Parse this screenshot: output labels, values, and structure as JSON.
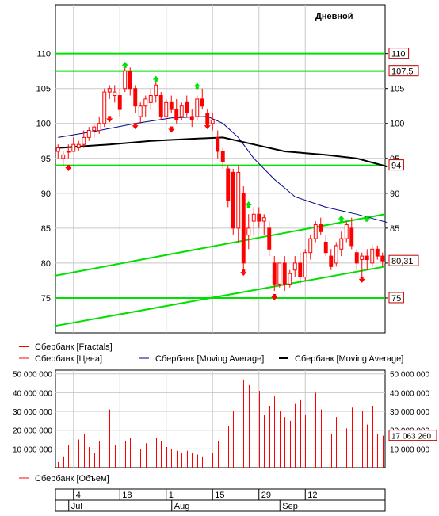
{
  "chart_data": [
    {
      "type": "candlestick",
      "title": "Дневной",
      "ylim": [
        70,
        117
      ],
      "y_ticks": [
        75,
        80,
        85,
        90,
        95,
        100,
        105,
        110
      ],
      "grid": true,
      "colors": {
        "price": "#ff0000",
        "ma_short": "#00008b",
        "ma_long": "#000000",
        "levels": "#00e000",
        "fractal_up": "#00e000",
        "fractal_down": "#ff0000"
      },
      "horizontal_levels": [
        110,
        107.5,
        94,
        75
      ],
      "level_labels": [
        "110",
        "107,5",
        "94",
        "75"
      ],
      "last_price": 80.31,
      "last_price_label": "80,31",
      "candles": [
        {
          "o": 96,
          "h": 97,
          "l": 95,
          "c": 96.5
        },
        {
          "o": 95,
          "h": 96,
          "l": 94,
          "c": 95.5
        },
        {
          "o": 96,
          "h": 97,
          "l": 95,
          "c": 96
        },
        {
          "o": 96,
          "h": 98,
          "l": 96,
          "c": 97
        },
        {
          "o": 96.5,
          "h": 97.5,
          "l": 96,
          "c": 97
        },
        {
          "o": 97,
          "h": 99,
          "l": 96.5,
          "c": 98
        },
        {
          "o": 98,
          "h": 99.5,
          "l": 97.5,
          "c": 99
        },
        {
          "o": 99,
          "h": 100,
          "l": 98,
          "c": 99.5
        },
        {
          "o": 99,
          "h": 101,
          "l": 98.5,
          "c": 100
        },
        {
          "o": 100,
          "h": 105,
          "l": 99.5,
          "c": 104.5
        },
        {
          "o": 104.5,
          "h": 105.5,
          "l": 103.5,
          "c": 105
        },
        {
          "o": 104,
          "h": 105.5,
          "l": 103,
          "c": 104.5
        },
        {
          "o": 104,
          "h": 105,
          "l": 101,
          "c": 102
        },
        {
          "o": 105,
          "h": 108,
          "l": 104.5,
          "c": 107.5
        },
        {
          "o": 107.5,
          "h": 108,
          "l": 104,
          "c": 105
        },
        {
          "o": 105,
          "h": 105.5,
          "l": 101.5,
          "c": 102.5
        },
        {
          "o": 101,
          "h": 103,
          "l": 100,
          "c": 102.5
        },
        {
          "o": 102.5,
          "h": 104,
          "l": 101,
          "c": 103.5
        },
        {
          "o": 103,
          "h": 105,
          "l": 102,
          "c": 104
        },
        {
          "o": 104,
          "h": 106,
          "l": 103,
          "c": 105.5
        },
        {
          "o": 104,
          "h": 104.5,
          "l": 100.5,
          "c": 101
        },
        {
          "o": 101,
          "h": 103.5,
          "l": 100,
          "c": 103
        },
        {
          "o": 103,
          "h": 104,
          "l": 101.5,
          "c": 102
        },
        {
          "o": 102,
          "h": 103.5,
          "l": 100,
          "c": 100.5
        },
        {
          "o": 101,
          "h": 103,
          "l": 100.5,
          "c": 102.5
        },
        {
          "o": 103,
          "h": 104,
          "l": 101,
          "c": 101.5
        },
        {
          "o": 101,
          "h": 102,
          "l": 99.5,
          "c": 100.5
        },
        {
          "o": 101,
          "h": 104,
          "l": 100.5,
          "c": 103.5
        },
        {
          "o": 103.5,
          "h": 105,
          "l": 102,
          "c": 102.5
        },
        {
          "o": 101.5,
          "h": 102,
          "l": 99.5,
          "c": 100
        },
        {
          "o": 100,
          "h": 101.5,
          "l": 99,
          "c": 100.5
        },
        {
          "o": 98,
          "h": 99,
          "l": 95,
          "c": 96
        },
        {
          "o": 96,
          "h": 96.5,
          "l": 93.5,
          "c": 94.5
        },
        {
          "o": 93.5,
          "h": 94,
          "l": 88,
          "c": 89
        },
        {
          "o": 93,
          "h": 93.5,
          "l": 84,
          "c": 85
        },
        {
          "o": 85,
          "h": 94,
          "l": 83,
          "c": 93
        },
        {
          "o": 90,
          "h": 91,
          "l": 79,
          "c": 80
        },
        {
          "o": 84,
          "h": 87,
          "l": 82,
          "c": 85
        },
        {
          "o": 86,
          "h": 88,
          "l": 84,
          "c": 87
        },
        {
          "o": 87,
          "h": 88,
          "l": 85,
          "c": 86
        },
        {
          "o": 86,
          "h": 87,
          "l": 84,
          "c": 86.5
        },
        {
          "o": 85,
          "h": 86,
          "l": 81,
          "c": 82
        },
        {
          "o": 80,
          "h": 81,
          "l": 76,
          "c": 77
        },
        {
          "o": 77,
          "h": 80,
          "l": 76.5,
          "c": 80
        },
        {
          "o": 80,
          "h": 81,
          "l": 76,
          "c": 77
        },
        {
          "o": 77,
          "h": 79,
          "l": 76.5,
          "c": 78.5
        },
        {
          "o": 79,
          "h": 81,
          "l": 78,
          "c": 80
        },
        {
          "o": 80,
          "h": 81.5,
          "l": 77,
          "c": 78
        },
        {
          "o": 78,
          "h": 82,
          "l": 77.5,
          "c": 81.5
        },
        {
          "o": 81.5,
          "h": 84,
          "l": 80.5,
          "c": 83.5
        },
        {
          "o": 83.5,
          "h": 86,
          "l": 83,
          "c": 85.5
        },
        {
          "o": 85.5,
          "h": 86.5,
          "l": 84,
          "c": 84.5
        },
        {
          "o": 83,
          "h": 84,
          "l": 81,
          "c": 81.5
        },
        {
          "o": 81,
          "h": 82,
          "l": 79,
          "c": 79.5
        },
        {
          "o": 80,
          "h": 83,
          "l": 79.5,
          "c": 82.5
        },
        {
          "o": 82,
          "h": 84.5,
          "l": 81,
          "c": 83.5
        },
        {
          "o": 83.5,
          "h": 86,
          "l": 83,
          "c": 85.5
        },
        {
          "o": 85,
          "h": 86.5,
          "l": 82,
          "c": 82.5
        },
        {
          "o": 81.5,
          "h": 82,
          "l": 79,
          "c": 80
        },
        {
          "o": 80.5,
          "h": 81.5,
          "l": 78,
          "c": 81
        },
        {
          "o": 81,
          "h": 82,
          "l": 79,
          "c": 80.5
        },
        {
          "o": 80,
          "h": 82.5,
          "l": 79.5,
          "c": 82
        },
        {
          "o": 82,
          "h": 82.5,
          "l": 80.5,
          "c": 81
        },
        {
          "o": 81,
          "h": 81.5,
          "l": 79.5,
          "c": 80.31
        }
      ],
      "fractals_up": [
        [
          13,
          108.5
        ],
        [
          19,
          106.5
        ],
        [
          27,
          105.5
        ],
        [
          37,
          88.5
        ],
        [
          55,
          86.5
        ],
        [
          60,
          86.5
        ]
      ],
      "fractals_down": [
        [
          2,
          93.5
        ],
        [
          10,
          100.5
        ],
        [
          15,
          99.5
        ],
        [
          22,
          99
        ],
        [
          29,
          99.5
        ],
        [
          36,
          78.5
        ],
        [
          42,
          75
        ],
        [
          59,
          77.5
        ]
      ],
      "ma_short": [
        [
          0,
          98
        ],
        [
          8,
          99
        ],
        [
          15,
          100
        ],
        [
          22,
          100.8
        ],
        [
          29,
          101
        ],
        [
          32,
          100
        ],
        [
          35,
          98
        ],
        [
          38,
          95
        ],
        [
          42,
          92
        ],
        [
          46,
          89.5
        ],
        [
          52,
          88
        ],
        [
          58,
          87
        ],
        [
          64,
          85.8
        ]
      ],
      "ma_long": [
        [
          0,
          96.5
        ],
        [
          10,
          97
        ],
        [
          18,
          97.5
        ],
        [
          26,
          97.8
        ],
        [
          32,
          98
        ],
        [
          38,
          97
        ],
        [
          44,
          96
        ],
        [
          52,
          95.5
        ],
        [
          58,
          95
        ],
        [
          64,
          93.8
        ]
      ],
      "channel_lines": [
        [
          [
            0,
            78.2
          ],
          [
            64,
            87
          ]
        ],
        [
          [
            0,
            71
          ],
          [
            64,
            79.5
          ]
        ]
      ]
    },
    {
      "type": "bar",
      "ylim": [
        0,
        52000000
      ],
      "y_ticks": [
        10000000,
        20000000,
        30000000,
        40000000,
        50000000
      ],
      "y_tick_labels": [
        "10 000 000",
        "20 000 000",
        "30 000 000",
        "40 000 000",
        "50 000 000"
      ],
      "last_value_label": "17 063 260",
      "values": [
        3000000,
        6000000,
        12000000,
        9000000,
        15000000,
        18000000,
        11000000,
        8000000,
        14000000,
        10000000,
        31000000,
        12000000,
        11000000,
        14000000,
        16000000,
        12000000,
        10000000,
        13000000,
        12000000,
        16000000,
        14000000,
        11000000,
        10000000,
        9000000,
        8000000,
        9000000,
        8000000,
        7000000,
        6000000,
        10000000,
        8000000,
        14000000,
        18000000,
        22000000,
        30000000,
        36000000,
        47000000,
        44000000,
        46000000,
        41000000,
        28000000,
        33000000,
        38000000,
        30000000,
        27000000,
        25000000,
        34000000,
        36000000,
        28000000,
        22000000,
        40000000,
        31000000,
        22000000,
        18000000,
        27000000,
        24000000,
        21000000,
        32000000,
        26000000,
        30000000,
        23000000,
        33000000,
        18000000,
        17063260
      ]
    }
  ],
  "legend_top": [
    {
      "label": "Сбербанк [Fractals]",
      "color": "#ff0000"
    },
    {
      "label": "Сбербанк [Цена]",
      "color": "#ff0000"
    },
    {
      "label": "Сбербанк [Moving Average]",
      "color": "#00008b"
    },
    {
      "label": "Сбербанк [Moving Average]",
      "color": "#000000"
    }
  ],
  "legend_volume": {
    "label": "Сбербанк [Объем]",
    "color": "#ff0000"
  },
  "time_axis": {
    "day_labels": [
      {
        "i": 3,
        "text": "4"
      },
      {
        "i": 12,
        "text": "18"
      },
      {
        "i": 21,
        "text": "1"
      },
      {
        "i": 30,
        "text": "15"
      },
      {
        "i": 39,
        "text": "29"
      },
      {
        "i": 48,
        "text": "12"
      }
    ],
    "month_labels": [
      {
        "i": 3,
        "text": "Jul"
      },
      {
        "i": 23,
        "text": "Aug"
      },
      {
        "i": 44,
        "text": "Sep"
      }
    ]
  }
}
